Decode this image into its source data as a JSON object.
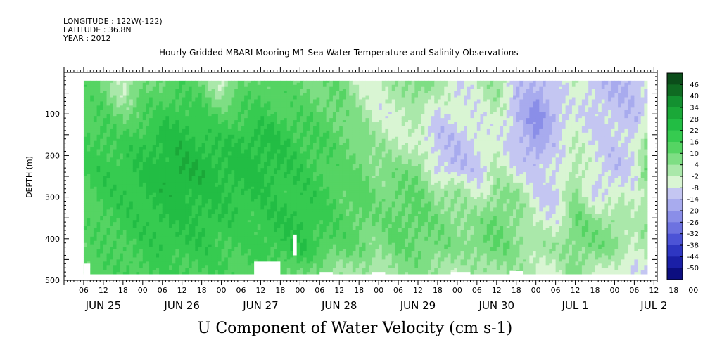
{
  "header": {
    "longitude": "LONGITUDE : 122W(-122)",
    "latitude": "LATITUDE : 36.8N",
    "year": "YEAR : 2012"
  },
  "title": "Hourly Gridded MBARI Mooring M1 Sea Water Temperature and Salinity Observations",
  "bottom_title": "U Component of Water Velocity (cm s-1)",
  "chart_data": {
    "type": "heatmap",
    "ylabel": "DEPTH (m)",
    "y_axis": {
      "reversed": true,
      "ylim": [
        500,
        0
      ],
      "ticks": [
        100,
        200,
        300,
        400,
        500
      ]
    },
    "x_axis": {
      "hour_labels": [
        "06",
        "12",
        "18",
        "00",
        "06",
        "12",
        "18",
        "00",
        "06",
        "12",
        "18",
        "00",
        "06",
        "12",
        "18",
        "00",
        "06",
        "12",
        "18",
        "00",
        "06",
        "12",
        "18",
        "00",
        "06",
        "12",
        "18",
        "00",
        "06",
        "12",
        "18",
        "00"
      ],
      "day_labels": [
        "JUN 25",
        "JUN 26",
        "JUN 27",
        "JUN 28",
        "JUN 29",
        "JUN 30",
        "JUL 1",
        "JUL 2"
      ],
      "start_label": "JUN 25 00:00",
      "hours_range": [
        0,
        181
      ]
    },
    "data_extent": {
      "hours": [
        6,
        178
      ],
      "depth": [
        20,
        485
      ]
    },
    "colorbar": {
      "labels": [
        46,
        40,
        34,
        28,
        22,
        16,
        10,
        4,
        -2,
        -8,
        -14,
        -20,
        -26,
        -32,
        -38,
        -44,
        -50
      ],
      "colors": [
        "#0b4d1a",
        "#0f6a22",
        "#139030",
        "#1aa838",
        "#22bd44",
        "#36cb50",
        "#55d463",
        "#7ede84",
        "#aae8aa",
        "#d9f5d3",
        "#c4c6f2",
        "#a8abee",
        "#8a8ee8",
        "#6d72e0",
        "#4c53d6",
        "#2e36c2",
        "#1a1fa6",
        "#0c0e80"
      ]
    },
    "columns": [
      {
        "h": 6,
        "v": [
          12,
          14,
          16,
          16,
          14,
          12,
          12,
          14
        ]
      },
      {
        "h": 12,
        "v": [
          10,
          14,
          18,
          20,
          18,
          16,
          14,
          14
        ]
      },
      {
        "h": 18,
        "v": [
          -4,
          8,
          16,
          20,
          20,
          18,
          16,
          14
        ]
      },
      {
        "h": 24,
        "v": [
          8,
          14,
          20,
          22,
          22,
          20,
          18,
          16
        ]
      },
      {
        "h": 30,
        "v": [
          12,
          18,
          24,
          26,
          24,
          22,
          20,
          16
        ]
      },
      {
        "h": 36,
        "v": [
          14,
          20,
          24,
          28,
          26,
          22,
          20,
          16
        ]
      },
      {
        "h": 42,
        "v": [
          10,
          18,
          22,
          26,
          24,
          22,
          20,
          16
        ]
      },
      {
        "h": 48,
        "v": [
          -2,
          12,
          20,
          24,
          22,
          20,
          18,
          16
        ]
      },
      {
        "h": 54,
        "v": [
          10,
          16,
          22,
          24,
          22,
          18,
          16,
          14
        ]
      },
      {
        "h": 60,
        "v": [
          14,
          18,
          24,
          24,
          22,
          20,
          18,
          14
        ]
      },
      {
        "h": 66,
        "v": [
          12,
          16,
          22,
          22,
          20,
          22,
          20,
          14
        ]
      },
      {
        "h": 72,
        "v": [
          10,
          14,
          18,
          20,
          20,
          22,
          22,
          12
        ]
      },
      {
        "h": 78,
        "v": [
          8,
          12,
          16,
          16,
          18,
          18,
          16,
          6
        ]
      },
      {
        "h": 84,
        "v": [
          10,
          10,
          12,
          12,
          14,
          14,
          12,
          4
        ]
      },
      {
        "h": 90,
        "v": [
          -2,
          4,
          8,
          10,
          12,
          12,
          10,
          2
        ]
      },
      {
        "h": 96,
        "v": [
          -6,
          -4,
          2,
          6,
          8,
          8,
          6,
          0
        ]
      },
      {
        "h": 102,
        "v": [
          4,
          -6,
          -2,
          6,
          10,
          12,
          10,
          6
        ]
      },
      {
        "h": 108,
        "v": [
          8,
          2,
          -6,
          8,
          10,
          12,
          10,
          6
        ]
      },
      {
        "h": 114,
        "v": [
          2,
          -8,
          -12,
          -10,
          4,
          8,
          8,
          4
        ]
      },
      {
        "h": 120,
        "v": [
          -8,
          -6,
          -12,
          -14,
          4,
          6,
          6,
          -2
        ]
      },
      {
        "h": 126,
        "v": [
          -4,
          -6,
          -8,
          -10,
          -6,
          6,
          8,
          2
        ]
      },
      {
        "h": 132,
        "v": [
          4,
          -2,
          -4,
          -2,
          6,
          10,
          10,
          4
        ]
      },
      {
        "h": 138,
        "v": [
          -10,
          -14,
          -12,
          -8,
          4,
          6,
          6,
          2
        ]
      },
      {
        "h": 144,
        "v": [
          -16,
          -22,
          -20,
          -12,
          -8,
          -4,
          2,
          -2
        ]
      },
      {
        "h": 150,
        "v": [
          -10,
          -14,
          -10,
          -8,
          -12,
          -6,
          2,
          -4
        ]
      },
      {
        "h": 156,
        "v": [
          -2,
          -6,
          -4,
          2,
          4,
          10,
          8,
          6
        ]
      },
      {
        "h": 162,
        "v": [
          -12,
          -10,
          -8,
          -8,
          -10,
          6,
          8,
          -2
        ]
      },
      {
        "h": 168,
        "v": [
          -14,
          -12,
          -10,
          -12,
          -6,
          4,
          6,
          -6
        ]
      },
      {
        "h": 174,
        "v": [
          -14,
          -12,
          -10,
          -8,
          -4,
          -2,
          -2,
          -8
        ]
      },
      {
        "h": 178,
        "v": [
          -10,
          -8,
          6,
          8,
          4,
          2,
          2,
          -6
        ]
      }
    ],
    "depths": [
      30,
      100,
      160,
      230,
      290,
      360,
      420,
      475
    ]
  }
}
